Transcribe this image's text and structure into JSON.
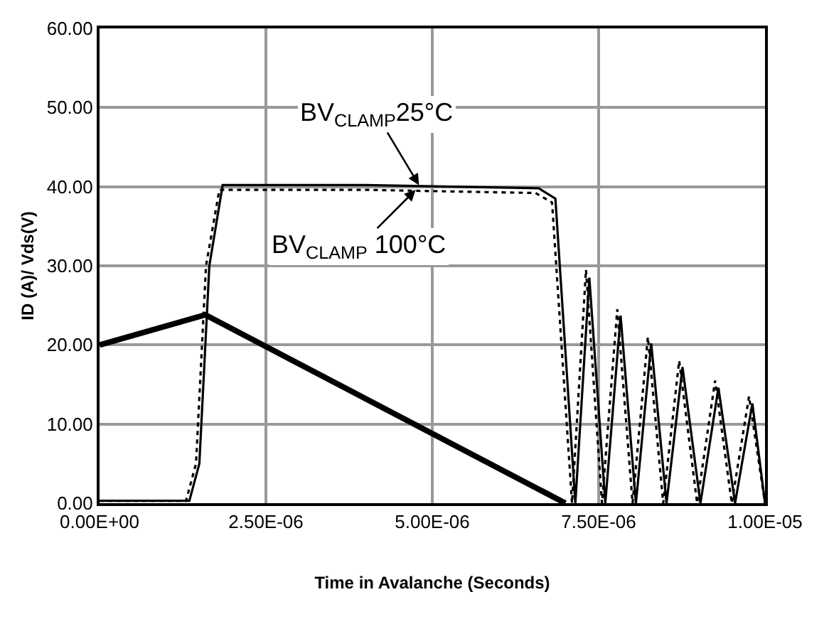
{
  "chart_data": {
    "type": "line",
    "xlabel": "Time in Avalanche (Seconds)",
    "ylabel": "ID (A)/ Vds(V)",
    "xlim": [
      0,
      1e-05
    ],
    "xticks": [
      {
        "value": 0,
        "label": "0.00E+00"
      },
      {
        "value": 2.5e-06,
        "label": "2.50E-06"
      },
      {
        "value": 5e-06,
        "label": "5.00E-06"
      },
      {
        "value": 7.5e-06,
        "label": "7.50E-06"
      },
      {
        "value": 1e-05,
        "label": "1.00E-05"
      }
    ],
    "ylim": [
      0,
      60
    ],
    "yticks": [
      {
        "value": 0,
        "label": "0.00"
      },
      {
        "value": 10,
        "label": "10.00"
      },
      {
        "value": 20,
        "label": "20.00"
      },
      {
        "value": 30,
        "label": "30.00"
      },
      {
        "value": 40,
        "label": "40.00"
      },
      {
        "value": 50,
        "label": "50.00"
      },
      {
        "value": 60,
        "label": "60.00"
      }
    ],
    "grid": true,
    "legend": false,
    "marker": "none",
    "series": [
      {
        "color": "#000000",
        "line_style": "solid",
        "x": [
          0,
          1.59e-06,
          7e-06
        ],
        "values": [
          20,
          23.8,
          0
        ]
      },
      {
        "color": "#000000",
        "line_style": "solid",
        "x": [
          0,
          1.35e-06,
          1.5e-06,
          1.65e-06,
          1.85e-06,
          4e-06,
          6.6e-06,
          6.85e-06,
          7.15e-06,
          7.36e-06,
          7.6e-06,
          7.83e-06,
          8.06e-06,
          8.29e-06,
          8.52e-06,
          8.76e-06,
          9.03e-06,
          9.3e-06,
          9.55e-06,
          9.81e-06,
          1e-05
        ],
        "values": [
          0.3,
          0.3,
          5,
          30,
          40.2,
          40.2,
          39.8,
          38.5,
          0,
          28.5,
          0,
          23.7,
          0,
          20.2,
          0,
          17.2,
          0,
          14.6,
          0,
          12.6,
          0
        ]
      },
      {
        "color": "#000000",
        "line_style": "dotted",
        "x": [
          0,
          1.3e-06,
          1.45e-06,
          1.6e-06,
          1.8e-06,
          4e-06,
          6.55e-06,
          6.8e-06,
          7.1e-06,
          7.31e-06,
          7.55e-06,
          7.78e-06,
          8.01e-06,
          8.24e-06,
          8.47e-06,
          8.71e-06,
          8.98e-06,
          9.25e-06,
          9.5e-06,
          9.76e-06,
          1e-05
        ],
        "values": [
          0.3,
          0.3,
          5,
          30,
          39.6,
          39.6,
          39.2,
          38,
          0,
          29.5,
          0,
          24.5,
          0,
          21,
          0,
          18,
          0,
          15.5,
          0,
          13.5,
          0
        ]
      }
    ],
    "annotations": [
      {
        "text": "BV$_{CLAMP}$25°C",
        "x": 4.8e-06,
        "y": 40.2
      },
      {
        "text": "BV$_{CLAMP}$ 100°C",
        "x": 4.75e-06,
        "y": 39.6
      }
    ]
  }
}
